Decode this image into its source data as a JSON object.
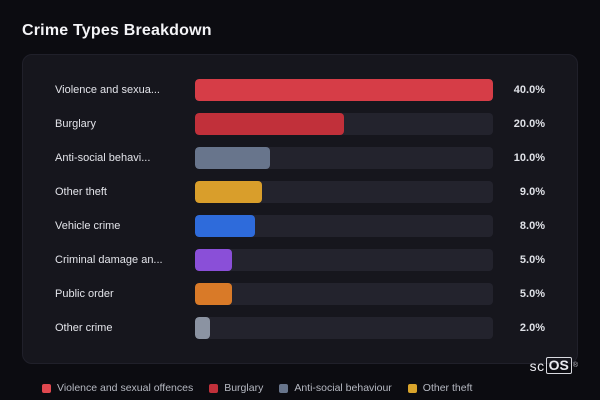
{
  "title": "Crime Types Breakdown",
  "chart_data": {
    "type": "bar",
    "orientation": "horizontal",
    "title": "Crime Types Breakdown",
    "max_value": 40,
    "categories": [
      "Violence and sexua...",
      "Burglary",
      "Anti-social behavi...",
      "Other theft",
      "Vehicle crime",
      "Criminal damage an...",
      "Public order",
      "Other crime"
    ],
    "values": [
      40.0,
      20.0,
      10.0,
      9.0,
      8.0,
      5.0,
      5.0,
      2.0
    ],
    "value_labels": [
      "40.0%",
      "20.0%",
      "10.0%",
      "9.0%",
      "8.0%",
      "5.0%",
      "5.0%",
      "2.0%"
    ],
    "bar_colors": [
      "#d63d47",
      "#c1303a",
      "#68758c",
      "#d99e2b",
      "#2e6bdb",
      "#8a4fd8",
      "#d97a28",
      "#8b93a2"
    ],
    "track_color": "#23232d",
    "grid": false,
    "legend_position": "bottom"
  },
  "legend": {
    "items": [
      {
        "label": "Violence and sexual offences",
        "color": "#e0484f"
      },
      {
        "label": "Burglary",
        "color": "#c1303a"
      },
      {
        "label": "Anti-social behaviour",
        "color": "#68758c"
      },
      {
        "label": "Other theft",
        "color": "#d9a42b"
      }
    ]
  },
  "branding": {
    "prefix": "sc",
    "boxed": "OS",
    "registered": "®"
  }
}
